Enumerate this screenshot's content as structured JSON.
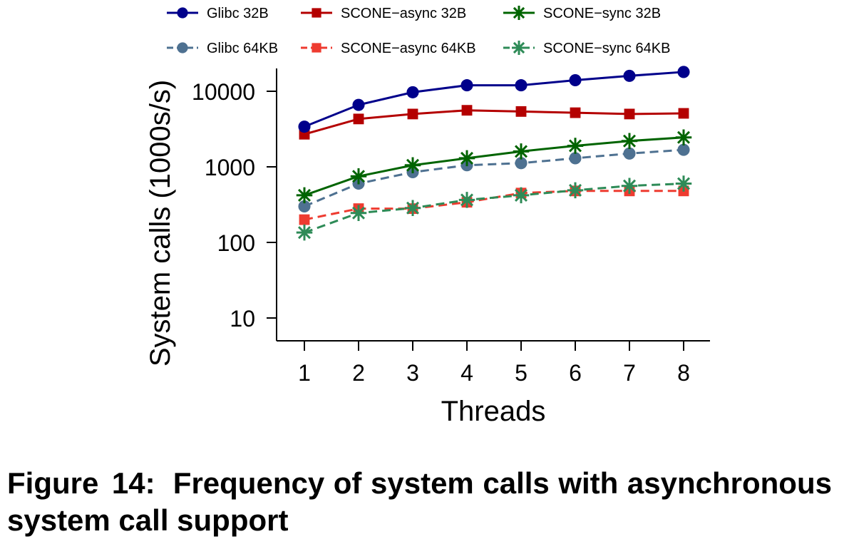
{
  "chart_data": {
    "type": "line",
    "title": "",
    "xlabel": "Threads",
    "ylabel": "System calls (1000s/s)",
    "yscale": "log",
    "ylim": [
      5,
      20000
    ],
    "xlim": [
      0.5,
      9.0
    ],
    "x": [
      1,
      2,
      3,
      4,
      5,
      6,
      7,
      8
    ],
    "x_tick_labels": [
      "1",
      "2",
      "3",
      "4",
      "5",
      "6",
      "7",
      "8"
    ],
    "y_ticks": [
      10,
      100,
      1000,
      10000
    ],
    "y_tick_labels": [
      "10",
      "100",
      "1000",
      "10000"
    ],
    "grid": false,
    "legend_position": "top",
    "series": [
      {
        "name": "Glibc 32B",
        "color": "#00008b",
        "marker": "circle",
        "dash": "solid",
        "values": [
          3400,
          6600,
          9700,
          12000,
          12000,
          14000,
          16000,
          18000
        ]
      },
      {
        "name": "SCONE−async 32B",
        "color": "#b40000",
        "marker": "square",
        "dash": "solid",
        "values": [
          2700,
          4300,
          5000,
          5600,
          5400,
          5200,
          5000,
          5100
        ]
      },
      {
        "name": "SCONE−sync 32B",
        "color": "#006400",
        "marker": "asterisk",
        "dash": "solid",
        "values": [
          420,
          750,
          1050,
          1300,
          1600,
          1900,
          2200,
          2450
        ]
      },
      {
        "name": "Glibc 64KB",
        "color": "#4e7191",
        "marker": "circle",
        "dash": "dashed",
        "values": [
          300,
          600,
          850,
          1050,
          1120,
          1300,
          1500,
          1680
        ]
      },
      {
        "name": "SCONE−async 64KB",
        "color": "#ee3b30",
        "marker": "square",
        "dash": "dashed",
        "values": [
          200,
          280,
          280,
          340,
          450,
          480,
          480,
          480
        ]
      },
      {
        "name": "SCONE−sync 64KB",
        "color": "#2e8b57",
        "marker": "asterisk",
        "dash": "dashed",
        "values": [
          135,
          245,
          285,
          365,
          420,
          490,
          560,
          600
        ]
      }
    ]
  },
  "caption": {
    "label": "Figure 14:",
    "text": "Frequency of system calls with asynchronous system call support",
    "text_display": "Frequency of system calls with asyn­chronous system call support"
  }
}
